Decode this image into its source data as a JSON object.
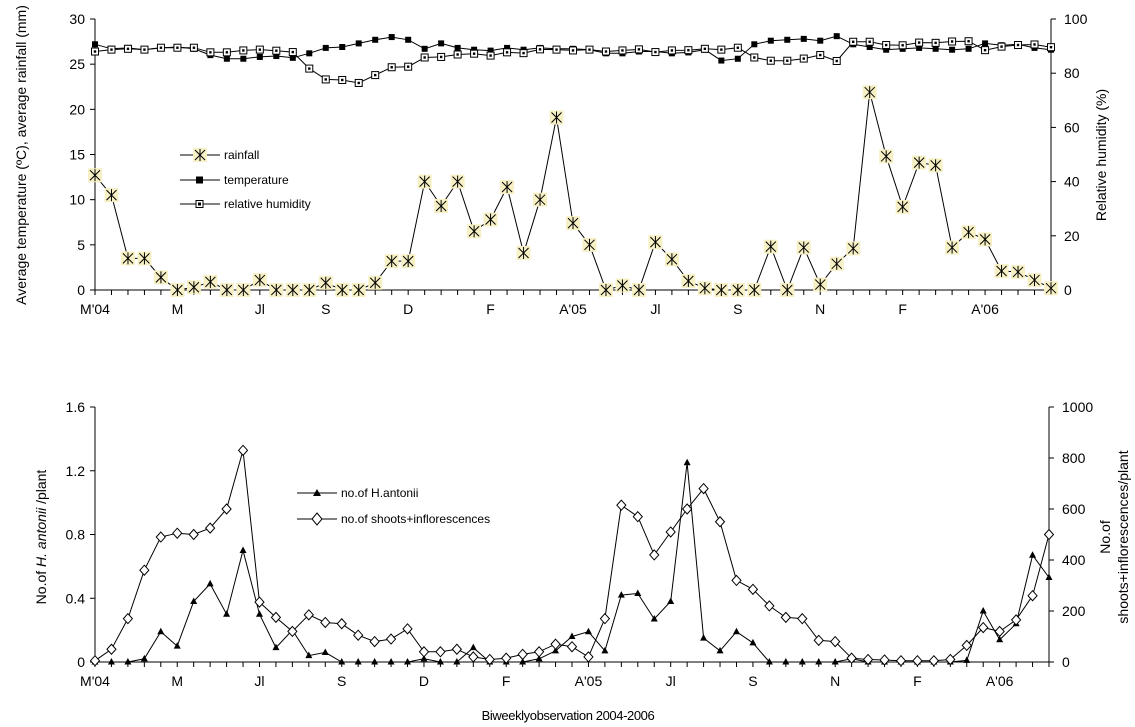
{
  "chart_data": [
    {
      "type": "line",
      "panel": "top",
      "ylabel_left": "Average temperature (ºC), average rainfall (mm)",
      "ylabel_right": "Relative humidity (%)",
      "ylim_left": [
        0,
        30
      ],
      "ylim_right": [
        0,
        100
      ],
      "yticks_left": [
        "0",
        "5",
        "10",
        "15",
        "20",
        "25",
        "30"
      ],
      "yticks_right": [
        "0",
        "20",
        "40",
        "60",
        "80",
        "100"
      ],
      "x_tick_labels": [
        {
          "pos": 0,
          "label": "M'04"
        },
        {
          "pos": 5,
          "label": "M"
        },
        {
          "pos": 10,
          "label": "Jl"
        },
        {
          "pos": 14,
          "label": "S"
        },
        {
          "pos": 19,
          "label": "D"
        },
        {
          "pos": 24,
          "label": "F"
        },
        {
          "pos": 29,
          "label": "A'05"
        },
        {
          "pos": 34,
          "label": "Jl"
        },
        {
          "pos": 39,
          "label": "S"
        },
        {
          "pos": 44,
          "label": "N"
        },
        {
          "pos": 49,
          "label": "F"
        },
        {
          "pos": 54,
          "label": "A'06"
        }
      ],
      "legend": [
        "rainfall",
        "temperature",
        "relative humidity"
      ],
      "grid": false,
      "series": [
        {
          "name": "rainfall",
          "axis": "left",
          "marker": "star",
          "values": [
            12.7,
            10.5,
            3.5,
            3.5,
            1.4,
            0,
            0.3,
            0.9,
            0,
            0,
            1.1,
            0,
            0,
            0,
            0.8,
            0,
            0,
            0.8,
            3.2,
            3.2,
            12,
            9.3,
            12,
            6.5,
            7.8,
            11.4,
            4.1,
            10,
            19.1,
            7.4,
            5,
            0,
            0.5,
            0,
            5.3,
            3.4,
            1,
            0.2,
            0,
            0,
            0,
            4.8,
            0,
            4.7,
            0.6,
            2.9,
            4.6,
            21.9,
            14.8,
            9.2,
            14.1,
            13.8,
            4.7,
            6.4,
            5.6,
            2.1,
            2,
            1.1,
            0.2
          ]
        },
        {
          "name": "temperature",
          "axis": "left",
          "marker": "filled-square",
          "values": [
            27.2,
            26.7,
            26.8,
            26.6,
            26.8,
            26.9,
            26.7,
            26,
            25.6,
            25.6,
            25.8,
            25.9,
            25.7,
            26.2,
            26.8,
            26.9,
            27.3,
            27.7,
            28,
            27.7,
            26.7,
            27.3,
            26.8,
            26.6,
            26.5,
            26.8,
            26.6,
            26.8,
            26.7,
            26.7,
            26.6,
            26.2,
            26.2,
            26.4,
            26.4,
            26.2,
            26.3,
            26.6,
            25.4,
            25.6,
            27.2,
            27.6,
            27.7,
            27.8,
            27.6,
            28.1,
            27.2,
            26.9,
            26.6,
            26.7,
            26.8,
            26.7,
            26.6,
            26.7,
            27.3,
            27.1,
            27.2,
            26.8,
            26.6
          ]
        },
        {
          "name": "relative humidity",
          "axis": "right",
          "marker": "open-square",
          "values": [
            88,
            88.7,
            89,
            88.7,
            89.4,
            89.4,
            89.4,
            87.7,
            87.7,
            88.4,
            88.7,
            88.3,
            87.8,
            81.7,
            77.7,
            77.5,
            76.4,
            79.3,
            82.2,
            82.4,
            85.8,
            86,
            86.9,
            87.2,
            86.5,
            87.7,
            87.4,
            88.8,
            88.7,
            88.4,
            88.7,
            88,
            88.4,
            88.8,
            87.8,
            88.4,
            88.5,
            89,
            88.7,
            89.4,
            85.8,
            84.6,
            84.6,
            85.4,
            86.7,
            84.5,
            91.6,
            91.6,
            90.4,
            90.3,
            91.3,
            91.2,
            91.7,
            91.8,
            88.5,
            89.8,
            90.4,
            90.6,
            89.6
          ]
        }
      ]
    },
    {
      "type": "line",
      "panel": "bottom",
      "ylabel_left": "No.of H. antonii /plant",
      "ylabel_right": "No.of shoots+inflorescences/plant",
      "xlabel": "Biweeklyobservation 2004-2006",
      "ylim_left": [
        0,
        1.6
      ],
      "ylim_right": [
        0,
        1000
      ],
      "yticks_left": [
        "0",
        "0.4",
        "0.8",
        "1.2",
        "1.6"
      ],
      "yticks_right": [
        "0",
        "200",
        "400",
        "600",
        "800",
        "1000"
      ],
      "x_tick_labels": [
        {
          "pos": 0,
          "label": "M'04"
        },
        {
          "pos": 5,
          "label": "M"
        },
        {
          "pos": 10,
          "label": "Jl"
        },
        {
          "pos": 15,
          "label": "S"
        },
        {
          "pos": 20,
          "label": "D"
        },
        {
          "pos": 25,
          "label": "F"
        },
        {
          "pos": 30,
          "label": "A'05"
        },
        {
          "pos": 35,
          "label": "Jl"
        },
        {
          "pos": 40,
          "label": "S"
        },
        {
          "pos": 45,
          "label": "N"
        },
        {
          "pos": 50,
          "label": "F"
        },
        {
          "pos": 55,
          "label": "A'06"
        }
      ],
      "legend": [
        "no.of H.antonii",
        "no.of shoots+inflorescences"
      ],
      "grid": false,
      "series": [
        {
          "name": "no.of H.antonii",
          "axis": "left",
          "marker": "filled-triangle",
          "values": [
            0,
            0,
            0,
            0.02,
            0.19,
            0.1,
            0.38,
            0.49,
            0.3,
            0.7,
            0.3,
            0.09,
            0.2,
            0.04,
            0.06,
            0,
            0,
            0,
            0,
            0,
            0.02,
            0,
            0,
            0.09,
            0,
            0,
            0,
            0.02,
            0.07,
            0.16,
            0.19,
            0.07,
            0.42,
            0.43,
            0.27,
            0.38,
            1.25,
            0.15,
            0.07,
            0.19,
            0.12,
            0,
            0,
            0,
            0,
            0,
            0.02,
            0,
            0,
            0,
            0,
            0,
            0,
            0.01,
            0.32,
            0.14,
            0.24,
            0.67,
            0.53
          ]
        },
        {
          "name": "no.of shoots+inflorescences",
          "axis": "right",
          "marker": "open-diamond",
          "values": [
            5,
            50,
            170,
            360,
            490,
            505,
            500,
            525,
            600,
            830,
            235,
            175,
            120,
            185,
            155,
            150,
            105,
            80,
            90,
            130,
            40,
            40,
            50,
            20,
            10,
            15,
            30,
            40,
            70,
            60,
            20,
            170,
            615,
            570,
            420,
            510,
            600,
            680,
            550,
            320,
            285,
            220,
            175,
            170,
            85,
            80,
            15,
            10,
            8,
            5,
            5,
            5,
            10,
            65,
            135,
            120,
            165,
            260,
            500
          ]
        }
      ]
    }
  ]
}
